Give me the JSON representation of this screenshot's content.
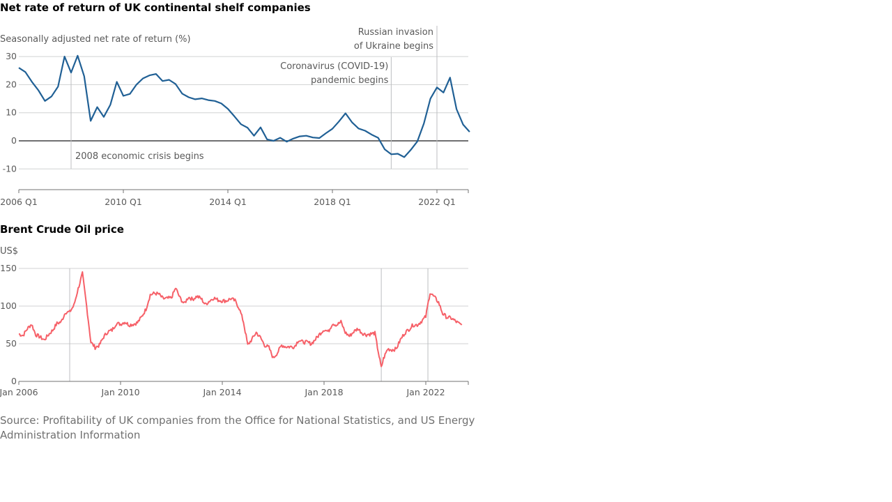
{
  "source": "Source: Profitability of UK companies from the Office for National Statistics, and US Energy Administration Information",
  "chart_data": [
    {
      "type": "line",
      "title": "Net rate of return of UK continental shelf companies",
      "ylabel": "Seasonally adjusted net rate of return (%)",
      "xlabel": "",
      "ylim": [
        -18,
        33
      ],
      "yticks": [
        30,
        20,
        10,
        0,
        -10
      ],
      "xticks": [
        "2006 Q1",
        "2010 Q1",
        "2014 Q1",
        "2018 Q1",
        "2022 Q1"
      ],
      "grid": true,
      "color": "#206095",
      "annotations": [
        {
          "x": "2008 Q1",
          "lines": [
            "2008 economic crisis begins"
          ]
        },
        {
          "x": "2020 Q2",
          "lines": [
            "Coronavirus (COVID-19)",
            "pandemic begins"
          ]
        },
        {
          "x": "2022 Q1",
          "lines": [
            "Russian invasion",
            "of Ukraine begins"
          ]
        }
      ],
      "x": [
        "2006 Q1",
        "2006 Q2",
        "2006 Q3",
        "2006 Q4",
        "2007 Q1",
        "2007 Q2",
        "2007 Q3",
        "2007 Q4",
        "2008 Q1",
        "2008 Q2",
        "2008 Q3",
        "2008 Q4",
        "2009 Q1",
        "2009 Q2",
        "2009 Q3",
        "2009 Q4",
        "2010 Q1",
        "2010 Q2",
        "2010 Q3",
        "2010 Q4",
        "2011 Q1",
        "2011 Q2",
        "2011 Q3",
        "2011 Q4",
        "2012 Q1",
        "2012 Q2",
        "2012 Q3",
        "2012 Q4",
        "2013 Q1",
        "2013 Q2",
        "2013 Q3",
        "2013 Q4",
        "2014 Q1",
        "2014 Q2",
        "2014 Q3",
        "2014 Q4",
        "2015 Q1",
        "2015 Q2",
        "2015 Q3",
        "2015 Q4",
        "2016 Q1",
        "2016 Q2",
        "2016 Q3",
        "2016 Q4",
        "2017 Q1",
        "2017 Q2",
        "2017 Q3",
        "2017 Q4",
        "2018 Q1",
        "2018 Q2",
        "2018 Q3",
        "2018 Q4",
        "2019 Q1",
        "2019 Q2",
        "2019 Q3",
        "2019 Q4",
        "2020 Q1",
        "2020 Q2",
        "2020 Q3",
        "2020 Q4",
        "2021 Q1",
        "2021 Q2",
        "2021 Q3",
        "2021 Q4",
        "2022 Q1",
        "2022 Q2",
        "2022 Q3",
        "2022 Q4",
        "2023 Q1",
        "2023 Q2"
      ],
      "values": [
        26,
        24.5,
        21,
        18,
        14.2,
        15.8,
        19.3,
        30,
        24.3,
        30.3,
        23,
        7.1,
        12,
        8.5,
        12.8,
        21,
        16,
        16.7,
        20,
        22.2,
        23.3,
        23.8,
        21.3,
        21.7,
        20.2,
        16.8,
        15.5,
        14.8,
        15.1,
        14.5,
        14.2,
        13.3,
        11.4,
        8.7,
        5.9,
        4.7,
        1.8,
        4.8,
        0.5,
        0,
        1.1,
        -0.3,
        0.8,
        1.6,
        1.8,
        1.2,
        1,
        2.7,
        4.3,
        6.9,
        9.8,
        6.6,
        4.4,
        3.6,
        2.2,
        1.1,
        -3,
        -4.8,
        -4.6,
        -5.8,
        -3.2,
        -0.2,
        6.2,
        15,
        19,
        17.2,
        22.5,
        11.3,
        5.8,
        3.2
      ]
    },
    {
      "type": "line",
      "title": "Brent Crude Oil price",
      "ylabel": "US$",
      "xlabel": "",
      "ylim": [
        0,
        150
      ],
      "yticks": [
        150,
        100,
        50,
        0
      ],
      "xticks": [
        "Jan 2006",
        "Jan 2010",
        "Jan 2014",
        "Jan 2018",
        "Jan 2022"
      ],
      "grid": true,
      "color": "#f66068",
      "reference_lines": [
        "2008-01",
        "2020-04",
        "2022-02"
      ],
      "x": [
        "2006-01",
        "2006-03",
        "2006-05",
        "2006-07",
        "2006-09",
        "2006-11",
        "2007-01",
        "2007-03",
        "2007-05",
        "2007-07",
        "2007-09",
        "2007-11",
        "2008-01",
        "2008-03",
        "2008-05",
        "2008-07",
        "2008-09",
        "2008-11",
        "2009-01",
        "2009-03",
        "2009-05",
        "2009-07",
        "2009-09",
        "2009-11",
        "2010-01",
        "2010-03",
        "2010-05",
        "2010-07",
        "2010-09",
        "2010-11",
        "2011-01",
        "2011-03",
        "2011-05",
        "2011-07",
        "2011-09",
        "2011-11",
        "2012-01",
        "2012-03",
        "2012-05",
        "2012-07",
        "2012-09",
        "2012-11",
        "2013-01",
        "2013-03",
        "2013-05",
        "2013-07",
        "2013-09",
        "2013-11",
        "2014-01",
        "2014-03",
        "2014-05",
        "2014-07",
        "2014-09",
        "2014-11",
        "2015-01",
        "2015-03",
        "2015-05",
        "2015-07",
        "2015-09",
        "2015-11",
        "2016-01",
        "2016-03",
        "2016-05",
        "2016-07",
        "2016-09",
        "2016-11",
        "2017-01",
        "2017-03",
        "2017-05",
        "2017-07",
        "2017-09",
        "2017-11",
        "2018-01",
        "2018-03",
        "2018-05",
        "2018-07",
        "2018-09",
        "2018-11",
        "2019-01",
        "2019-03",
        "2019-05",
        "2019-07",
        "2019-09",
        "2019-11",
        "2020-01",
        "2020-03",
        "2020-04",
        "2020-05",
        "2020-07",
        "2020-09",
        "2020-11",
        "2021-01",
        "2021-03",
        "2021-05",
        "2021-07",
        "2021-09",
        "2021-11",
        "2022-01",
        "2022-03",
        "2022-05",
        "2022-07",
        "2022-09",
        "2022-11",
        "2023-01",
        "2023-03",
        "2023-05",
        "2023-06"
      ],
      "values": [
        63,
        61,
        70,
        76,
        62,
        59,
        55,
        62,
        68,
        77,
        79,
        92,
        92,
        101,
        123,
        143,
        100,
        52,
        45,
        48,
        59,
        66,
        68,
        77,
        76,
        79,
        75,
        76,
        78,
        86,
        96,
        115,
        117,
        116,
        110,
        110,
        111,
        124,
        111,
        103,
        112,
        109,
        113,
        110,
        102,
        107,
        111,
        108,
        107,
        107,
        110,
        107,
        97,
        79,
        48,
        56,
        65,
        58,
        48,
        45,
        31,
        38,
        48,
        46,
        46,
        46,
        55,
        52,
        52,
        50,
        56,
        63,
        69,
        66,
        77,
        75,
        79,
        65,
        60,
        66,
        70,
        64,
        62,
        63,
        64,
        33,
        18,
        30,
        43,
        42,
        43,
        55,
        64,
        69,
        75,
        75,
        80,
        86,
        118,
        112,
        105,
        90,
        85,
        84,
        80,
        76,
        75
      ]
    }
  ]
}
